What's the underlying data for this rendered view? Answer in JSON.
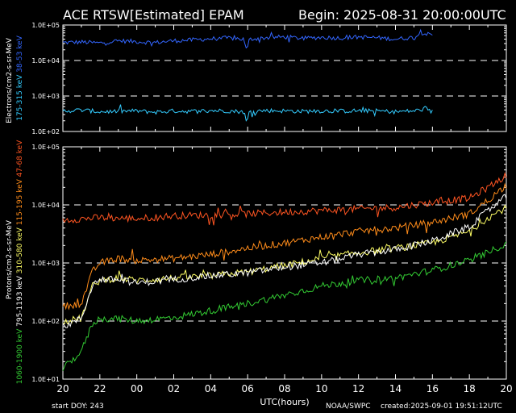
{
  "header": {
    "title": "ACE RTSW[Estimated] EPAM",
    "begin": "Begin: 2025-08-31 20:00:00UTC"
  },
  "footer": {
    "start_doy": "start DOY:  243",
    "xlabel": "UTC(hours)",
    "source": "NOAA/SWPC",
    "created": "created:2025-09-01 19:51:12UTC"
  },
  "chart_data": [
    {
      "type": "line",
      "scale": "log",
      "ylim": [
        100,
        100000
      ],
      "yticks": [
        "1.0E+02",
        "1.0E+03",
        "1.0E+04",
        "1.0E+05"
      ],
      "dashed_lines": [
        1000,
        10000
      ],
      "ylabel": "Electrons/cm2-s-sr-MeV",
      "xlim": [
        0,
        24
      ],
      "xticks": [
        "20",
        "22",
        "00",
        "02",
        "04",
        "06",
        "08",
        "10",
        "12",
        "14",
        "16",
        "18",
        "20"
      ],
      "series": [
        {
          "name": "38-53 keV",
          "color": "#3366ff",
          "x": [
            0,
            1,
            2,
            3,
            4,
            5,
            6,
            7,
            8,
            9,
            9.8,
            9.95,
            10.1,
            11,
            12,
            13,
            14,
            15,
            16,
            17,
            18,
            19,
            19.5,
            20
          ],
          "y": [
            32000,
            33000,
            31000,
            36000,
            34000,
            32000,
            36000,
            38000,
            41000,
            43000,
            40000,
            18000,
            40000,
            44000,
            46000,
            42000,
            45000,
            43000,
            46000,
            44000,
            40000,
            45000,
            62000,
            48000
          ]
        },
        {
          "name": "175-315 keV",
          "color": "#33ccff",
          "x": [
            0,
            1,
            2,
            3,
            4,
            5,
            6,
            7,
            8,
            9,
            9.8,
            9.95,
            10.1,
            11,
            12,
            13,
            14,
            15,
            16,
            17,
            18,
            19,
            19.5,
            20
          ],
          "y": [
            380,
            400,
            360,
            370,
            380,
            350,
            380,
            370,
            390,
            380,
            360,
            170,
            370,
            390,
            380,
            370,
            380,
            375,
            385,
            380,
            360,
            380,
            420,
            360
          ]
        }
      ]
    },
    {
      "type": "line",
      "scale": "log",
      "ylim": [
        10,
        100000
      ],
      "yticks": [
        "1.0E+01",
        "1.0E+02",
        "1.0E+03",
        "1.0E+04",
        "1.0E+05"
      ],
      "dashed_lines": [
        100,
        1000,
        10000
      ],
      "ylabel": "Protons/cm2-s-sr-MeV",
      "xlim": [
        0,
        24
      ],
      "xticks": [
        "20",
        "22",
        "00",
        "02",
        "04",
        "06",
        "08",
        "10",
        "12",
        "14",
        "16",
        "18",
        "20"
      ],
      "series": [
        {
          "name": "47-68 keV",
          "color": "#ff5522",
          "x": [
            0,
            2,
            4,
            6,
            8,
            10,
            12,
            14,
            16,
            17,
            18,
            19,
            20,
            21,
            22,
            23,
            24
          ],
          "y": [
            5500,
            6000,
            5800,
            6500,
            6700,
            7000,
            7500,
            8000,
            8500,
            8800,
            9000,
            10000,
            11000,
            12000,
            13000,
            20000,
            32000
          ]
        },
        {
          "name": "115-195 keV",
          "color": "#ff8c1a",
          "x": [
            0,
            1,
            1.6,
            2,
            3,
            4,
            6,
            8,
            10,
            12,
            14,
            16,
            18,
            20,
            22,
            23,
            24
          ],
          "y": [
            180,
            200,
            700,
            1000,
            1200,
            1100,
            1200,
            1400,
            1800,
            2200,
            2800,
            3500,
            4000,
            5000,
            7000,
            12000,
            22000
          ]
        },
        {
          "name": "310-580 keV",
          "color": "#ffff66",
          "x": [
            0,
            1,
            1.6,
            2,
            3,
            4,
            6,
            8,
            10,
            12,
            14,
            16,
            18,
            20,
            22,
            23,
            24
          ],
          "y": [
            100,
            110,
            400,
            500,
            550,
            500,
            550,
            600,
            700,
            900,
            1200,
            1500,
            1800,
            2200,
            3500,
            6000,
            9000
          ]
        },
        {
          "name": "795-1193 keV",
          "color": "#ffffff",
          "x": [
            0,
            1,
            1.6,
            2,
            3,
            4,
            6,
            8,
            10,
            12,
            14,
            16,
            18,
            20,
            22,
            23,
            24
          ],
          "y": [
            80,
            110,
            420,
            520,
            520,
            450,
            520,
            600,
            680,
            850,
            1000,
            1400,
            1700,
            2400,
            4200,
            8000,
            14000
          ]
        },
        {
          "name": "1060-1900 keV",
          "color": "#33cc33",
          "x": [
            0,
            1,
            1.6,
            2,
            3,
            4,
            6,
            8,
            10,
            12,
            14,
            16,
            18,
            20,
            22,
            23,
            24
          ],
          "y": [
            15,
            30,
            90,
            110,
            110,
            100,
            115,
            150,
            200,
            280,
            400,
            500,
            550,
            750,
            1100,
            1500,
            2200
          ]
        }
      ]
    }
  ]
}
